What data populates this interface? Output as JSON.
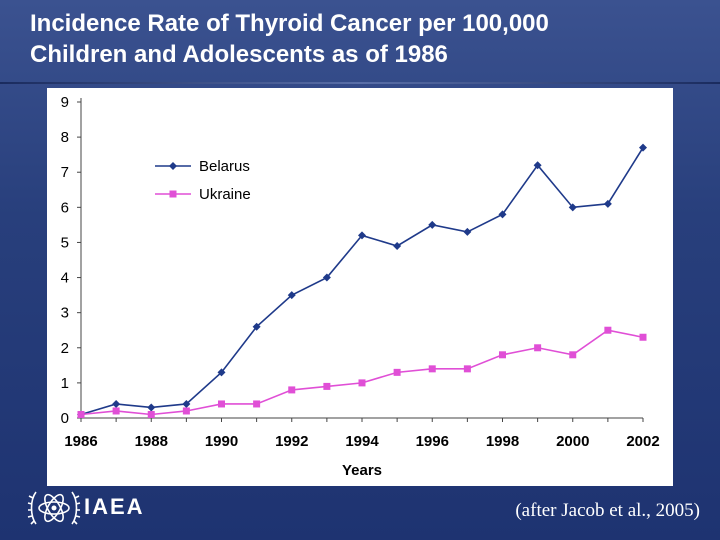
{
  "slide": {
    "title_line1": "Incidence Rate of Thyroid Cancer per 100,000",
    "title_line2": "Children and Adolescents as of 1986",
    "logo_text": "IAEA",
    "citation": "(after Jacob et al., 2005)"
  },
  "chart_data": {
    "type": "line",
    "title": "",
    "xlabel": "Years",
    "ylabel": "",
    "x": [
      1986,
      1987,
      1988,
      1989,
      1990,
      1991,
      1992,
      1993,
      1994,
      1995,
      1996,
      1997,
      1998,
      1999,
      2000,
      2001,
      2002
    ],
    "xlim": [
      1986,
      2002
    ],
    "ylim": [
      0,
      9
    ],
    "x_ticks": [
      1986,
      1988,
      1990,
      1992,
      1994,
      1996,
      1998,
      2000,
      2002
    ],
    "y_ticks": [
      0,
      1,
      2,
      3,
      4,
      5,
      6,
      7,
      8,
      9
    ],
    "grid": false,
    "legend_position": "top-left",
    "series": [
      {
        "name": "Belarus",
        "color": "#1f3a8a",
        "marker": "diamond",
        "values": [
          0.1,
          0.4,
          0.3,
          0.4,
          1.3,
          2.6,
          3.5,
          4.0,
          5.2,
          4.9,
          5.5,
          5.3,
          5.8,
          7.2,
          6.0,
          6.1,
          7.7
        ]
      },
      {
        "name": "Ukraine",
        "color": "#e04fd6",
        "marker": "square",
        "values": [
          0.1,
          0.2,
          0.1,
          0.2,
          0.4,
          0.4,
          0.8,
          0.9,
          1.0,
          1.3,
          1.4,
          1.4,
          1.8,
          2.0,
          1.8,
          2.5,
          2.3
        ]
      }
    ]
  }
}
